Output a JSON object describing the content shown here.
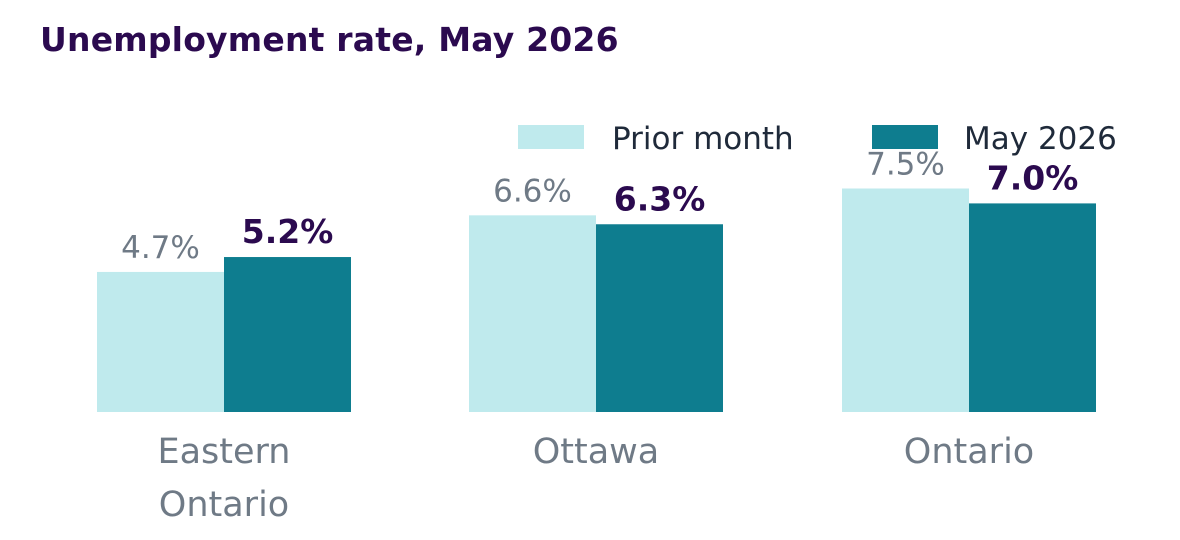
{
  "chart_data": {
    "type": "bar",
    "title": "Unemployment rate, May 2026",
    "categories": [
      [
        "Eastern",
        "Ontario"
      ],
      [
        "Ottawa"
      ],
      [
        "Ontario"
      ]
    ],
    "series": [
      {
        "name": "Prior month",
        "values": [
          4.7,
          6.6,
          7.5
        ],
        "labels": [
          "4.7%",
          "6.6%",
          "7.5%"
        ],
        "color": "#bfeaed"
      },
      {
        "name": "May 2026",
        "values": [
          5.2,
          6.3,
          7.0
        ],
        "labels": [
          "5.2%",
          "6.3%",
          "7.0%"
        ],
        "color": "#0e7d8f"
      }
    ],
    "ylim": [
      0,
      10.7
    ],
    "grid": false,
    "legend": "top-right",
    "xlabel": "",
    "ylabel": ""
  }
}
